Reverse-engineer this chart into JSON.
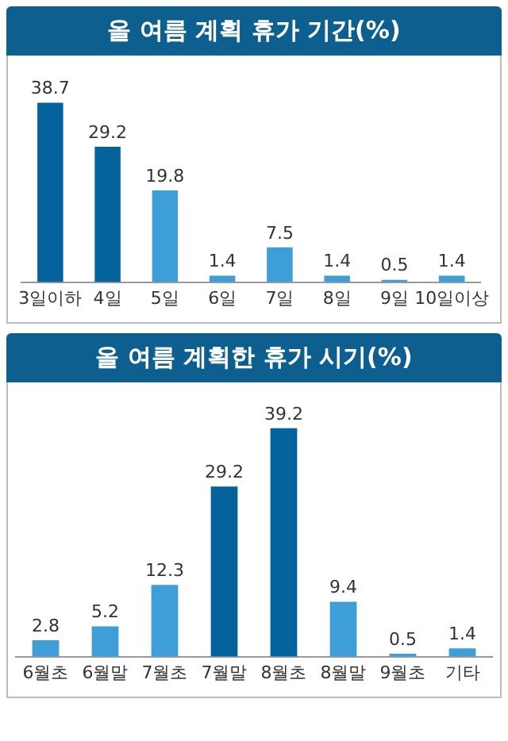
{
  "chart_data": [
    {
      "type": "bar",
      "title": "올 여름 계획 휴가 기간(%)",
      "categories": [
        "3일이하",
        "4일",
        "5일",
        "6일",
        "7일",
        "8일",
        "9일",
        "10일이상"
      ],
      "values": [
        38.7,
        29.2,
        19.8,
        1.4,
        7.5,
        1.4,
        0.5,
        1.4
      ],
      "colors": [
        "#04639c",
        "#04639c",
        "#3e9fd8",
        "#3e9fd8",
        "#3e9fd8",
        "#3e9fd8",
        "#3e9fd8",
        "#3e9fd8"
      ],
      "data_labels": true,
      "grid": false,
      "legend": false
    },
    {
      "type": "bar",
      "title": "올 여름 계획한 휴가 시기(%)",
      "categories": [
        "6월초",
        "6월말",
        "7월초",
        "7월말",
        "8월초",
        "8월말",
        "9월초",
        "기타"
      ],
      "values": [
        2.8,
        5.2,
        12.3,
        29.2,
        39.2,
        9.4,
        0.5,
        1.4
      ],
      "colors": [
        "#3e9fd8",
        "#3e9fd8",
        "#3e9fd8",
        "#04639c",
        "#04639c",
        "#3e9fd8",
        "#3e9fd8",
        "#3e9fd8"
      ],
      "data_labels": true,
      "grid": false,
      "legend": false
    }
  ]
}
